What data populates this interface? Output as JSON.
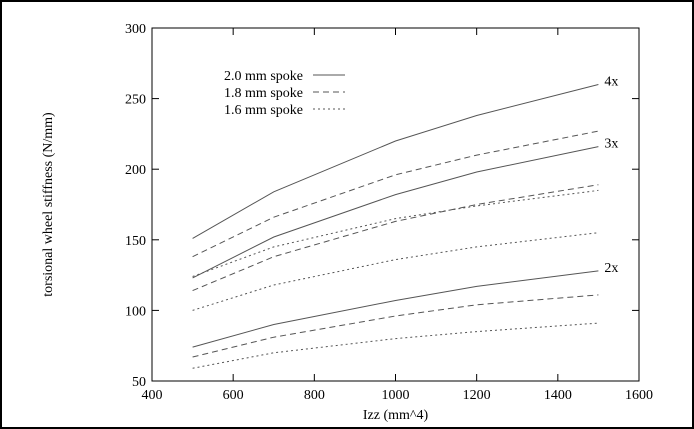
{
  "chart_data": {
    "type": "line",
    "title": "",
    "xlabel": "Izz (mm^4)",
    "ylabel": "torsional wheel stiffness (N/mm)",
    "xlim": [
      400,
      1600
    ],
    "ylim": [
      50,
      300
    ],
    "xticks": [
      400,
      600,
      800,
      1000,
      1200,
      1400,
      1600
    ],
    "yticks": [
      50,
      100,
      150,
      200,
      250,
      300
    ],
    "grid": false,
    "legend_position": "top-left",
    "series": [
      {
        "name": "2.0 mm spoke",
        "group": "4x",
        "style": "solid",
        "x": [
          500,
          700,
          1000,
          1200,
          1500
        ],
        "y": [
          151,
          184,
          220,
          238,
          260
        ]
      },
      {
        "name": "1.8 mm spoke",
        "group": "4x",
        "style": "dashed",
        "x": [
          500,
          700,
          1000,
          1200,
          1500
        ],
        "y": [
          138,
          166,
          196,
          210,
          227
        ]
      },
      {
        "name": "1.6 mm spoke",
        "group": "4x",
        "style": "dotted",
        "x": [
          500,
          700,
          1000,
          1200,
          1500
        ],
        "y": [
          124,
          145,
          165,
          174,
          185
        ]
      },
      {
        "name": "2.0 mm spoke",
        "group": "3x",
        "style": "solid",
        "x": [
          500,
          700,
          1000,
          1200,
          1500
        ],
        "y": [
          123,
          152,
          182,
          198,
          216
        ]
      },
      {
        "name": "1.8 mm spoke",
        "group": "3x",
        "style": "dashed",
        "x": [
          500,
          700,
          1000,
          1200,
          1500
        ],
        "y": [
          114,
          138,
          163,
          175,
          189
        ]
      },
      {
        "name": "1.6 mm spoke",
        "group": "3x",
        "style": "dotted",
        "x": [
          500,
          700,
          1000,
          1200,
          1500
        ],
        "y": [
          100,
          118,
          136,
          145,
          155
        ]
      },
      {
        "name": "2.0 mm spoke",
        "group": "2x",
        "style": "solid",
        "x": [
          500,
          700,
          1000,
          1200,
          1500
        ],
        "y": [
          74,
          90,
          107,
          117,
          128
        ]
      },
      {
        "name": "1.8 mm spoke",
        "group": "2x",
        "style": "dashed",
        "x": [
          500,
          700,
          1000,
          1200,
          1500
        ],
        "y": [
          67,
          81,
          96,
          104,
          111
        ]
      },
      {
        "name": "1.6 mm spoke",
        "group": "2x",
        "style": "dotted",
        "x": [
          500,
          700,
          1000,
          1200,
          1500
        ],
        "y": [
          59,
          70,
          80,
          85,
          91
        ]
      }
    ],
    "legend": [
      {
        "label": "2.0 mm spoke",
        "style": "solid"
      },
      {
        "label": "1.8 mm spoke",
        "style": "dashed"
      },
      {
        "label": "1.6 mm spoke",
        "style": "dotted"
      }
    ],
    "annotations": [
      {
        "text": "4x",
        "x": 1500,
        "y": 260
      },
      {
        "text": "3x",
        "x": 1500,
        "y": 216
      },
      {
        "text": "2x",
        "x": 1500,
        "y": 128
      }
    ],
    "colors": {
      "line": "#555555",
      "axis": "#000000"
    }
  }
}
